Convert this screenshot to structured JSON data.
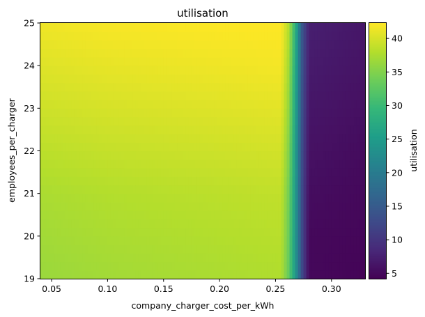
{
  "chart_data": {
    "type": "heatmap",
    "title": "utilisation",
    "xlabel": "company_charger_cost_per_kWh",
    "ylabel": "employees_per_charger",
    "xlim": [
      0.04,
      0.33
    ],
    "ylim": [
      19,
      25
    ],
    "xticks": [
      0.05,
      0.1,
      0.15,
      0.2,
      0.25,
      0.3
    ],
    "xtick_labels": [
      "0.05",
      "0.10",
      "0.15",
      "0.20",
      "0.25",
      "0.30"
    ],
    "yticks": [
      19,
      20,
      21,
      22,
      23,
      24,
      25
    ],
    "ytick_labels": [
      "19",
      "20",
      "21",
      "22",
      "23",
      "24",
      "25"
    ],
    "colormap": "viridis",
    "colorbar": {
      "label": "utilisation",
      "range": [
        4.2,
        42.3
      ],
      "ticks": [
        5,
        10,
        15,
        20,
        25,
        30,
        35,
        40
      ],
      "tick_labels": [
        "5",
        "10",
        "15",
        "20",
        "25",
        "30",
        "35",
        "40"
      ]
    },
    "grid": false,
    "surface": {
      "x_samples": [
        0.04,
        0.1,
        0.2,
        0.255,
        0.262,
        0.268,
        0.274,
        0.28,
        0.33
      ],
      "y_samples": [
        19,
        20,
        21,
        22,
        23,
        24,
        25
      ],
      "values": [
        [
          36.5,
          37.0,
          37.5,
          37.8,
          33.0,
          24.0,
          12.0,
          5.0,
          4.5
        ],
        [
          37.0,
          37.5,
          38.0,
          38.3,
          33.5,
          24.0,
          12.0,
          5.0,
          4.8
        ],
        [
          37.5,
          38.0,
          38.5,
          38.8,
          34.0,
          24.5,
          12.0,
          5.5,
          5.0
        ],
        [
          38.5,
          39.0,
          39.5,
          39.8,
          35.0,
          25.0,
          12.5,
          6.0,
          5.3
        ],
        [
          39.5,
          40.0,
          40.5,
          40.8,
          36.0,
          26.0,
          13.0,
          6.5,
          5.8
        ],
        [
          40.5,
          41.0,
          41.5,
          41.8,
          37.0,
          27.0,
          13.5,
          7.0,
          6.2
        ],
        [
          41.5,
          42.0,
          42.3,
          42.3,
          38.0,
          28.0,
          14.0,
          7.5,
          6.5
        ]
      ]
    }
  }
}
